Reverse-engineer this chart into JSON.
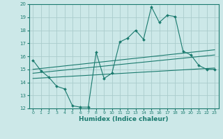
{
  "xlabel": "Humidex (Indice chaleur)",
  "ylabel": "",
  "xlim": [
    -0.5,
    23.5
  ],
  "ylim": [
    12,
    20
  ],
  "yticks": [
    12,
    13,
    14,
    15,
    16,
    17,
    18,
    19,
    20
  ],
  "xticks": [
    0,
    1,
    2,
    3,
    4,
    5,
    6,
    7,
    8,
    9,
    10,
    11,
    12,
    13,
    14,
    15,
    16,
    17,
    18,
    19,
    20,
    21,
    22,
    23
  ],
  "bg_color": "#cce8e8",
  "line_color": "#1a7a6e",
  "grid_color": "#aacccc",
  "lines": [
    {
      "x": [
        0,
        1,
        2,
        3,
        4,
        5,
        6,
        7,
        8,
        9,
        10,
        11,
        12,
        13,
        14,
        15,
        16,
        17,
        18,
        19,
        20,
        21,
        22,
        23
      ],
      "y": [
        15.7,
        14.9,
        14.4,
        13.7,
        13.5,
        12.2,
        12.1,
        12.1,
        16.3,
        14.3,
        14.7,
        17.1,
        17.4,
        18.0,
        17.3,
        19.8,
        18.6,
        19.15,
        19.05,
        16.4,
        16.1,
        15.3,
        15.0,
        15.0
      ],
      "marker": true
    },
    {
      "x": [
        0,
        23
      ],
      "y": [
        15.0,
        16.5
      ],
      "marker": false
    },
    {
      "x": [
        0,
        23
      ],
      "y": [
        14.7,
        16.1
      ],
      "marker": false
    },
    {
      "x": [
        0,
        23
      ],
      "y": [
        14.3,
        15.1
      ],
      "marker": false
    }
  ]
}
